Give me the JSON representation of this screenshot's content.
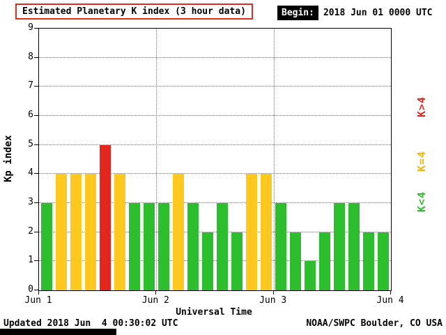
{
  "header": {
    "begin_label": "Begin:",
    "begin_value": "2018 Jun 01 0000 UTC"
  },
  "footer": {
    "updated": "Updated 2018 Jun  4 00:30:02 UTC",
    "source": "NOAA/SWPC Boulder, CO USA"
  },
  "chart_data": {
    "type": "bar",
    "title": "Estimated Planetary K index (3 hour data)",
    "xlabel": "Universal Time",
    "ylabel": "Kp index",
    "ylim": [
      0,
      9
    ],
    "yticks": [
      0,
      1,
      2,
      3,
      4,
      5,
      6,
      7,
      8,
      9
    ],
    "xtick_labels": [
      "Jun 1",
      "Jun 2",
      "Jun 3",
      "Jun 4"
    ],
    "begin": "2018 Jun 01 0000 UTC",
    "interval_hours": 3,
    "bars_per_day": 8,
    "values": [
      3,
      4,
      4,
      4,
      5,
      4,
      3,
      3,
      3,
      4,
      3,
      2,
      3,
      2,
      4,
      4,
      3,
      2,
      1,
      2,
      3,
      3,
      2,
      2
    ],
    "color_rules": {
      "k_lt_4": "#2dbe2d",
      "k_eq_4": "#ffc81e",
      "k_gt_4": "#e3251c"
    },
    "legend": [
      {
        "label": "K>4",
        "color": "#e3251c"
      },
      {
        "label": "K=4",
        "color": "#f5b400"
      },
      {
        "label": "K<4",
        "color": "#2dbe2d"
      }
    ],
    "grid": {
      "horizontal": "dotted line at each integer Kp value",
      "vertical": "dotted line at each day boundary",
      "legend_position": "right, rotated vertical"
    }
  }
}
